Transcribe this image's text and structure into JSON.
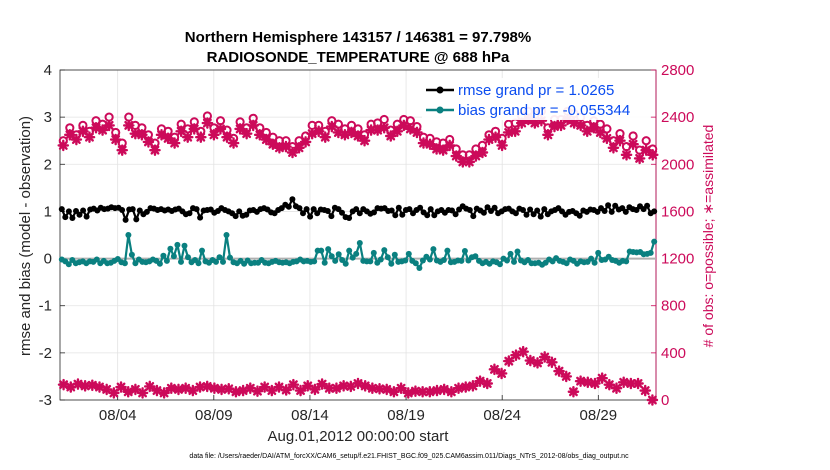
{
  "chart_data": {
    "type": "line",
    "title_line1": "Northern Hemisphere 143157 / 146381 = 97.798%",
    "title_line2": "RADIOSONDE_TEMPERATURE @ 688 hPa",
    "xlabel": "Aug.01,2012 00:00:00 start",
    "ylabel_left": "rmse and bias (model - observation)",
    "ylabel_right": "# of obs: o=possible; ∗=assimilated",
    "footnote": "data file: /Users/raeder/DAI/ATM_forcXX/CAM6_setup/f.e21.FHIST_BGC.f09_025.CAM6assim.011/Diags_NTrS_2012-08/obs_diag_output.nc",
    "x_range_days": [
      0.5,
      31.5
    ],
    "ylim_left": [
      -3,
      4
    ],
    "ylim_right": [
      0,
      2800
    ],
    "x_ticks": [
      {
        "day": 3.5,
        "label": "08/04"
      },
      {
        "day": 8.5,
        "label": "08/09"
      },
      {
        "day": 13.5,
        "label": "08/14"
      },
      {
        "day": 18.5,
        "label": "08/19"
      },
      {
        "day": 23.5,
        "label": "08/24"
      },
      {
        "day": 28.5,
        "label": "08/29"
      }
    ],
    "y_ticks_left": [
      "-3",
      "-2",
      "-1",
      "0",
      "1",
      "2",
      "3",
      "4"
    ],
    "y_ticks_right": [
      "0",
      "400",
      "800",
      "1200",
      "1600",
      "2000",
      "2400",
      "2800"
    ],
    "legend": {
      "rmse_label": "rmse grand pr = 1.0265",
      "bias_label": "bias grand pr = -0.055344"
    },
    "colors": {
      "rmse": "#000000",
      "bias": "#0a8080",
      "obs": "#cc0a5a",
      "zero_line": "#b0b0b0"
    },
    "series": [
      {
        "name": "rmse",
        "axis": "left",
        "values": [
          1.05,
          0.88,
          1.0,
          0.86,
          1.01,
          0.93,
          1.02,
          0.89,
          1.04,
          1.06,
          1.02,
          1.08,
          1.05,
          1.06,
          1.09,
          1.07,
          1.08,
          1.03,
          0.82,
          1.04,
          1.05,
          0.83,
          1.02,
          0.94,
          0.99,
          1.07,
          1.06,
          1.03,
          1.05,
          1.02,
          1.04,
          1.01,
          1.04,
          1.06,
          1.0,
          0.94,
          0.96,
          1.07,
          1.05,
          0.87,
          1.02,
          1.03,
          1.04,
          0.97,
          1.01,
          1.07,
          1.03,
          1.0,
          0.96,
          0.9,
          1.0,
          0.91,
          0.93,
          1.02,
          1.03,
          0.99,
          1.05,
          1.07,
          1.04,
          0.98,
          0.96,
          1.03,
          1.07,
          1.14,
          1.1,
          1.26,
          1.11,
          1.07,
          0.96,
          1.05,
          0.89,
          1.05,
          0.96,
          1.04,
          1.03,
          1.01,
          0.9,
          1.08,
          1.05,
          0.97,
          0.88,
          0.86,
          1.0,
          1.05,
          0.96,
          1.05,
          1.0,
          0.95,
          0.98,
          1.07,
          1.06,
          1.07,
          1.01,
          1.02,
          0.92,
          1.08,
          0.93,
          1.03,
          1.05,
          0.96,
          1.03,
          1.08,
          0.98,
          0.92,
          1.05,
          0.92,
          1.0,
          1.03,
          0.97,
          1.03,
          1.02,
          0.94,
          1.04,
          1.11,
          1.06,
          1.03,
          0.9,
          1.06,
          1.02,
          0.97,
          1.09,
          1.01,
          1.08,
          0.96,
          1.0,
          1.05,
          1.06,
          1.0,
          0.96,
          1.06,
          1.03,
          0.93,
          1.04,
          0.94,
          1.02,
          0.89,
          1.05,
          0.94,
          1.0,
          1.03,
          1.07,
          1.0,
          0.93,
          0.99,
          1.01,
          0.96,
          0.91,
          1.02,
          0.99,
          1.04,
          1.03,
          0.99,
          1.07,
          1.01,
          1.13,
          0.99,
          1.12,
          1.04,
          1.07,
          0.99,
          1.09,
          1.05,
          1.03,
          1.11,
          1.05,
          1.12,
          0.96,
          1.0
        ]
      },
      {
        "name": "bias",
        "axis": "left",
        "values": [
          -0.02,
          -0.06,
          -0.12,
          -0.03,
          -0.1,
          -0.08,
          -0.06,
          -0.1,
          -0.06,
          -0.07,
          -0.02,
          -0.1,
          -0.05,
          -0.1,
          -0.09,
          -0.05,
          -0.01,
          -0.08,
          -0.1,
          0.5,
          0.08,
          -0.1,
          -0.02,
          -0.07,
          -0.08,
          -0.06,
          -0.02,
          -0.05,
          -0.11,
          0.06,
          -0.05,
          0.21,
          0.05,
          0.29,
          -0.07,
          0.27,
          0.03,
          -0.08,
          -0.03,
          -0.1,
          0.17,
          -0.06,
          -0.09,
          -0.03,
          -0.07,
          0.03,
          -0.07,
          0.5,
          0.02,
          -0.08,
          -0.1,
          -0.05,
          -0.11,
          -0.04,
          -0.1,
          -0.09,
          -0.09,
          -0.03,
          -0.09,
          -0.1,
          -0.07,
          -0.05,
          -0.08,
          -0.09,
          -0.08,
          -0.1,
          -0.07,
          -0.06,
          -0.02,
          -0.06,
          -0.05,
          -0.07,
          -0.06,
          0.17,
          0.17,
          -0.09,
          0.2,
          0.05,
          -0.05,
          0.09,
          -0.03,
          -0.11,
          0.17,
          0.02,
          0.1,
          0.33,
          -0.05,
          -0.06,
          -0.06,
          0.12,
          -0.09,
          -0.02,
          0.18,
          0.03,
          -0.11,
          0.08,
          -0.07,
          -0.06,
          -0.04,
          0.1,
          -0.05,
          -0.1,
          -0.2,
          -0.04,
          0.04,
          -0.02,
          0.2,
          -0.04,
          -0.07,
          -0.03,
          0.17,
          -0.08,
          -0.07,
          -0.04,
          -0.05,
          0.16,
          -0.04,
          0.03,
          0.05,
          -0.05,
          -0.1,
          -0.07,
          -0.11,
          -0.06,
          -0.08,
          -0.12,
          0.0,
          -0.04,
          0.1,
          -0.07,
          0.15,
          -0.04,
          -0.08,
          -0.03,
          -0.1,
          -0.1,
          -0.09,
          -0.13,
          -0.09,
          -0.02,
          -0.06,
          0.01,
          -0.05,
          -0.07,
          -0.1,
          -0.02,
          -0.05,
          -0.11,
          -0.06,
          -0.08,
          -0.07,
          0.0,
          -0.09,
          0.12,
          -0.03,
          -0.02,
          0.04,
          -0.03,
          -0.05,
          -0.09,
          -0.05,
          -0.06,
          0.15,
          0.14,
          0.13,
          0.14,
          0.09,
          0.1,
          0.12,
          0.36
        ]
      },
      {
        "name": "obs possible",
        "axis": "right",
        "values": [
          2200,
          2310,
          2250,
          2330,
          2280,
          2370,
          2340,
          2400,
          2270,
          2180,
          2400,
          2330,
          2310,
          2250,
          2180,
          2300,
          2280,
          2230,
          2340,
          2300,
          2360,
          2280,
          2410,
          2310,
          2370,
          2290,
          2220,
          2360,
          2310,
          2390,
          2310,
          2270,
          2230,
          2200,
          2200,
          2150,
          2200,
          2240,
          2330,
          2330,
          2280,
          2370,
          2340,
          2300,
          2330,
          2300,
          2250,
          2340,
          2350,
          2380,
          2290,
          2340,
          2380,
          2370,
          2320,
          2230,
          2220,
          2190,
          2180,
          2210,
          2130,
          2080,
          2080,
          2130,
          2160,
          2250,
          2280,
          2220,
          2340,
          2350,
          2410,
          2450,
          2420,
          2450,
          2310,
          2380,
          2380,
          2450,
          2430,
          2400,
          2330,
          2370,
          2340,
          2300,
          2200,
          2260,
          2150,
          2240,
          2120,
          2200,
          2130
        ]
      },
      {
        "name": "obs assimilated",
        "axis": "right",
        "values": [
          2160,
          2250,
          2210,
          2280,
          2230,
          2310,
          2290,
          2330,
          2210,
          2120,
          2330,
          2260,
          2250,
          2190,
          2120,
          2250,
          2220,
          2180,
          2280,
          2230,
          2300,
          2230,
          2350,
          2250,
          2300,
          2230,
          2180,
          2300,
          2260,
          2330,
          2250,
          2210,
          2170,
          2140,
          2150,
          2100,
          2140,
          2190,
          2260,
          2280,
          2230,
          2320,
          2270,
          2250,
          2270,
          2240,
          2200,
          2290,
          2290,
          2310,
          2240,
          2280,
          2330,
          2300,
          2270,
          2180,
          2170,
          2130,
          2120,
          2160,
          2070,
          2020,
          2020,
          2070,
          2100,
          2210,
          2230,
          2160,
          2270,
          2280,
          2350,
          2380,
          2350,
          2370,
          2250,
          2320,
          2330,
          2380,
          2350,
          2330,
          2280,
          2310,
          2270,
          2220,
          2140,
          2200,
          2080,
          2170,
          2050,
          2120,
          2080
        ]
      },
      {
        "name": "obs assimilated 00Z",
        "axis": "right",
        "values": [
          130,
          110,
          135,
          120,
          125,
          110,
          90,
          60,
          110,
          70,
          90,
          60,
          115,
          80,
          60,
          100,
          90,
          100,
          80,
          110,
          115,
          100,
          90,
          95,
          70,
          80,
          100,
          75,
          110,
          80,
          110,
          85,
          130,
          80,
          120,
          90,
          135,
          100,
          100,
          120,
          115,
          140,
          120,
          100,
          95,
          90,
          70,
          100,
          60,
          75,
          70,
          70,
          80,
          90,
          70,
          100,
          110,
          120,
          160,
          140,
          260,
          225,
          330,
          380,
          410,
          335,
          315,
          365,
          320,
          245,
          200,
          70,
          160,
          150,
          140,
          185,
          130,
          100,
          150,
          140,
          140,
          80,
          0
        ]
      }
    ]
  }
}
